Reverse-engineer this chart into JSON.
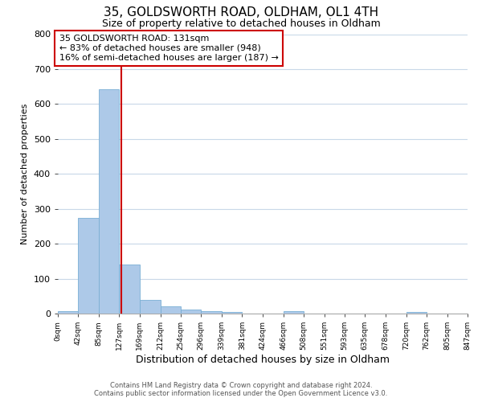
{
  "title": "35, GOLDSWORTH ROAD, OLDHAM, OL1 4TH",
  "subtitle": "Size of property relative to detached houses in Oldham",
  "xlabel": "Distribution of detached houses by size in Oldham",
  "ylabel": "Number of detached properties",
  "bar_edges": [
    0,
    42,
    85,
    127,
    169,
    212,
    254,
    296,
    339,
    381,
    424,
    466,
    508,
    551,
    593,
    635,
    678,
    720,
    762,
    805,
    847
  ],
  "bar_heights": [
    7,
    275,
    643,
    140,
    38,
    20,
    12,
    8,
    5,
    0,
    0,
    7,
    0,
    0,
    0,
    0,
    0,
    5,
    0,
    0
  ],
  "bar_color": "#adc9e8",
  "bar_edge_color": "#7aafd4",
  "vline_x": 131,
  "vline_color": "#cc0000",
  "ylim": [
    0,
    800
  ],
  "yticks": [
    0,
    100,
    200,
    300,
    400,
    500,
    600,
    700,
    800
  ],
  "annotation_box_text": "35 GOLDSWORTH ROAD: 131sqm\n← 83% of detached houses are smaller (948)\n16% of semi-detached houses are larger (187) →",
  "annotation_box_color": "#cc0000",
  "background_color": "#ffffff",
  "grid_color": "#c8d8e8",
  "footer_line1": "Contains HM Land Registry data © Crown copyright and database right 2024.",
  "footer_line2": "Contains public sector information licensed under the Open Government Licence v3.0.",
  "tick_labels": [
    "0sqm",
    "42sqm",
    "85sqm",
    "127sqm",
    "169sqm",
    "212sqm",
    "254sqm",
    "296sqm",
    "339sqm",
    "381sqm",
    "424sqm",
    "466sqm",
    "508sqm",
    "551sqm",
    "593sqm",
    "635sqm",
    "678sqm",
    "720sqm",
    "762sqm",
    "805sqm",
    "847sqm"
  ]
}
